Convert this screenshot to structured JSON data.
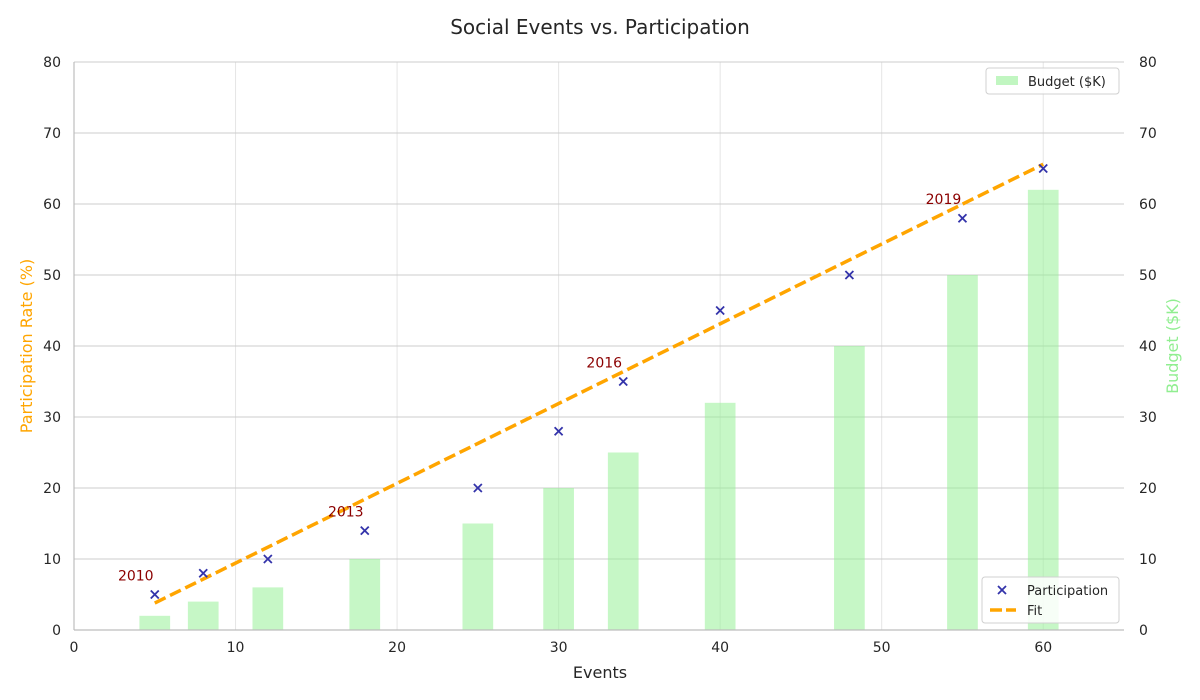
{
  "chart_data": {
    "type": "scatter",
    "title": "Social Events vs. Participation",
    "xlabel": "Events",
    "ylabel_left": "Participation Rate (%)",
    "ylabel_right": "Budget ($K)",
    "xlim": [
      0,
      65
    ],
    "ylim_left": [
      0,
      80
    ],
    "ylim_right": [
      0,
      80
    ],
    "xticks": [
      0,
      10,
      20,
      30,
      40,
      50,
      60
    ],
    "yticks": [
      0,
      10,
      20,
      30,
      40,
      50,
      60,
      70,
      80
    ],
    "grid": true,
    "series": [
      {
        "name": "Participation",
        "kind": "scatter",
        "marker": "x",
        "color": "#3333aa",
        "x": [
          5,
          8,
          12,
          18,
          25,
          30,
          34,
          40,
          48,
          55,
          60
        ],
        "y": [
          5,
          8,
          10,
          14,
          20,
          28,
          35,
          45,
          50,
          58,
          65
        ]
      },
      {
        "name": "Fit",
        "kind": "line",
        "dashed": true,
        "color": "#ffa500",
        "x": [
          5,
          60
        ],
        "y": [
          3.8,
          65.6
        ]
      },
      {
        "name": "Budget ($K)",
        "kind": "bar",
        "axis": "right",
        "color": "#98f098",
        "x": [
          5,
          8,
          12,
          18,
          25,
          30,
          34,
          40,
          48,
          55,
          60
        ],
        "y": [
          2,
          4,
          6,
          10,
          15,
          20,
          25,
          32,
          40,
          50,
          62
        ]
      }
    ],
    "annotations": [
      {
        "text": "2010",
        "x": 5,
        "y": 5
      },
      {
        "text": "2013",
        "x": 18,
        "y": 14
      },
      {
        "text": "2016",
        "x": 34,
        "y": 35
      },
      {
        "text": "2019",
        "x": 55,
        "y": 58
      }
    ],
    "legends": {
      "upper_right": [
        "Budget ($K)"
      ],
      "lower_right": [
        "Participation",
        "Fit"
      ]
    },
    "colors": {
      "left_label": "#ffa500",
      "right_label": "#90ee90",
      "annotation": "#8b0000"
    }
  }
}
